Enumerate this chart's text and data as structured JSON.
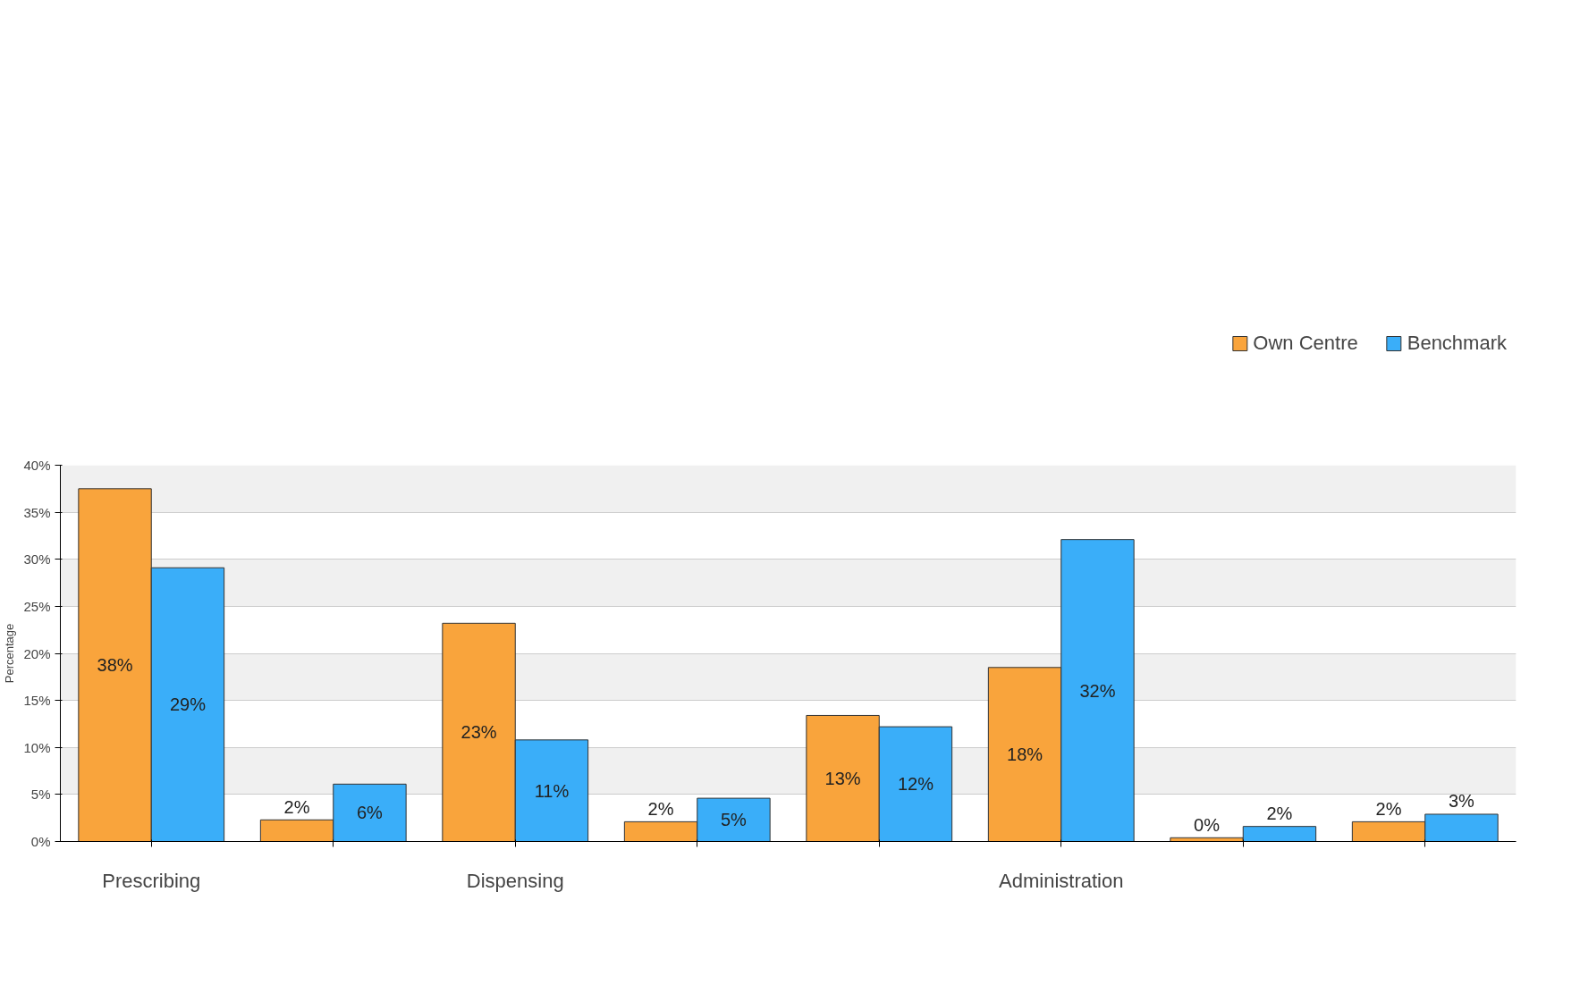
{
  "chart_data": {
    "type": "bar",
    "ylabel": "Percentage",
    "categories": [
      "Prescribing",
      null,
      "Dispensing",
      null,
      null,
      "Administration",
      null,
      null
    ],
    "series": [
      {
        "name": "Own Centre",
        "color": "#f9a43c",
        "values": [
          37.5,
          2.3,
          23.2,
          2.1,
          13.4,
          18.5,
          0.4,
          2.1
        ],
        "value_labels": [
          "38%",
          "2%",
          "23%",
          "2%",
          "13%",
          "18%",
          "0%",
          "2%"
        ]
      },
      {
        "name": "Benchmark",
        "color": "#3aaef9",
        "values": [
          29.1,
          6.1,
          10.8,
          4.6,
          12.2,
          32.1,
          1.6,
          2.9
        ],
        "value_labels": [
          "29%",
          "6%",
          "11%",
          "5%",
          "12%",
          "32%",
          "2%",
          "3%"
        ]
      }
    ],
    "ylim": [
      0,
      40
    ],
    "yticks": [
      {
        "value": 0,
        "label": "0%"
      },
      {
        "value": 5,
        "label": "5%"
      },
      {
        "value": 10,
        "label": "10%"
      },
      {
        "value": 15,
        "label": "15%"
      },
      {
        "value": 20,
        "label": "20%"
      },
      {
        "value": 25,
        "label": "25%"
      },
      {
        "value": 30,
        "label": "30%"
      },
      {
        "value": 35,
        "label": "35%"
      },
      {
        "value": 40,
        "label": "40%"
      }
    ],
    "grid": "y",
    "legend": "top right"
  }
}
